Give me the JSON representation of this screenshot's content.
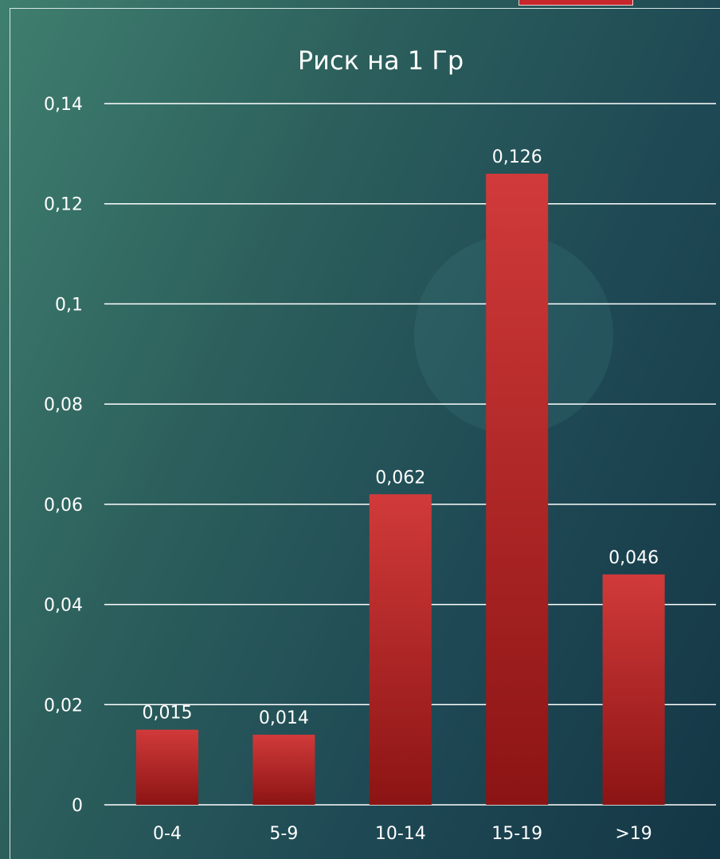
{
  "chart_data": {
    "type": "bar",
    "title": "Риск на 1 Гр",
    "categories": [
      "0-4",
      "5-9",
      "10-14",
      "15-19",
      ">19"
    ],
    "values": [
      0.015,
      0.014,
      0.062,
      0.126,
      0.046
    ],
    "value_labels": [
      "0,015",
      "0,014",
      "0,062",
      "0,126",
      "0,046"
    ],
    "ylim": [
      0,
      0.14
    ],
    "y_ticks": [
      0,
      0.02,
      0.04,
      0.06,
      0.08,
      0.1,
      0.12,
      0.14
    ],
    "y_tick_labels": [
      "0",
      "0,02",
      "0,04",
      "0,06",
      "0,08",
      "0,1",
      "0,12",
      "0,14"
    ],
    "xlabel": "",
    "ylabel": "",
    "grid": true,
    "legend": "none",
    "bar_color_top": "#d13a3a",
    "bar_color_bottom": "#8c1414"
  },
  "colors": {
    "background_start": "#3f7f6f",
    "background_end": "#143645",
    "accent": "#c7262b",
    "text": "#ffffff"
  }
}
